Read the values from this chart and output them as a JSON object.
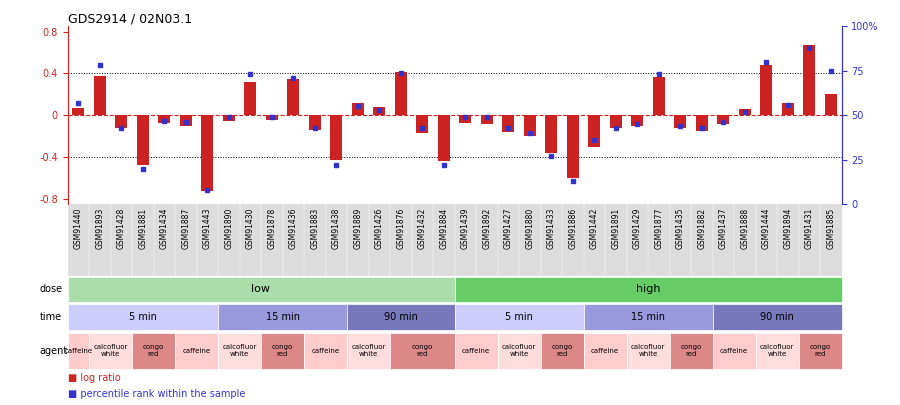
{
  "title": "GDS2914 / 02N03.1",
  "samples": [
    "GSM91440",
    "GSM91893",
    "GSM91428",
    "GSM91881",
    "GSM91434",
    "GSM91887",
    "GSM91443",
    "GSM91890",
    "GSM91430",
    "GSM91878",
    "GSM91436",
    "GSM91883",
    "GSM91438",
    "GSM91889",
    "GSM91426",
    "GSM91876",
    "GSM91432",
    "GSM91884",
    "GSM91439",
    "GSM91892",
    "GSM91427",
    "GSM91880",
    "GSM91433",
    "GSM91886",
    "GSM91442",
    "GSM91891",
    "GSM91429",
    "GSM91877",
    "GSM91435",
    "GSM91882",
    "GSM91437",
    "GSM91888",
    "GSM91444",
    "GSM91894",
    "GSM91431",
    "GSM91885"
  ],
  "log_ratio": [
    0.07,
    0.38,
    -0.12,
    -0.47,
    -0.07,
    -0.1,
    -0.72,
    -0.05,
    0.32,
    -0.04,
    0.35,
    -0.14,
    -0.43,
    0.12,
    0.08,
    0.41,
    -0.17,
    -0.44,
    -0.07,
    -0.08,
    -0.16,
    -0.2,
    -0.36,
    -0.6,
    -0.3,
    -0.12,
    -0.1,
    0.37,
    -0.12,
    -0.15,
    -0.08,
    0.06,
    0.48,
    0.12,
    0.67,
    0.2
  ],
  "percentile": [
    57,
    78,
    43,
    20,
    47,
    46,
    8,
    49,
    73,
    49,
    71,
    43,
    22,
    55,
    53,
    74,
    43,
    22,
    49,
    49,
    43,
    40,
    27,
    13,
    36,
    43,
    45,
    73,
    44,
    43,
    46,
    52,
    80,
    56,
    88,
    75
  ],
  "ylim": [
    -0.85,
    0.85
  ],
  "yticks": [
    -0.8,
    -0.4,
    0.0,
    0.4,
    0.8
  ],
  "ytick_labels": [
    "-0.8",
    "-0.4",
    "0",
    "0.4",
    "0.8"
  ],
  "right_yticks": [
    0,
    25,
    50,
    75,
    100
  ],
  "right_ytick_labels": [
    "0",
    "25",
    "50",
    "75",
    "100%"
  ],
  "hlines": [
    0.4,
    0.0,
    -0.4
  ],
  "bar_color": "#cc2222",
  "dot_color": "#3333cc",
  "dose_low_color": "#aaddaa",
  "dose_high_color": "#66cc66",
  "time_colors": [
    "#ccccff",
    "#9999dd",
    "#7777bb"
  ],
  "agent_colors": [
    "#ffcccc",
    "#ffdddd",
    "#dd8888"
  ],
  "bg_color": "#ffffff",
  "label_font_size": 7,
  "tick_font_size": 7,
  "sample_font_size": 5.5
}
